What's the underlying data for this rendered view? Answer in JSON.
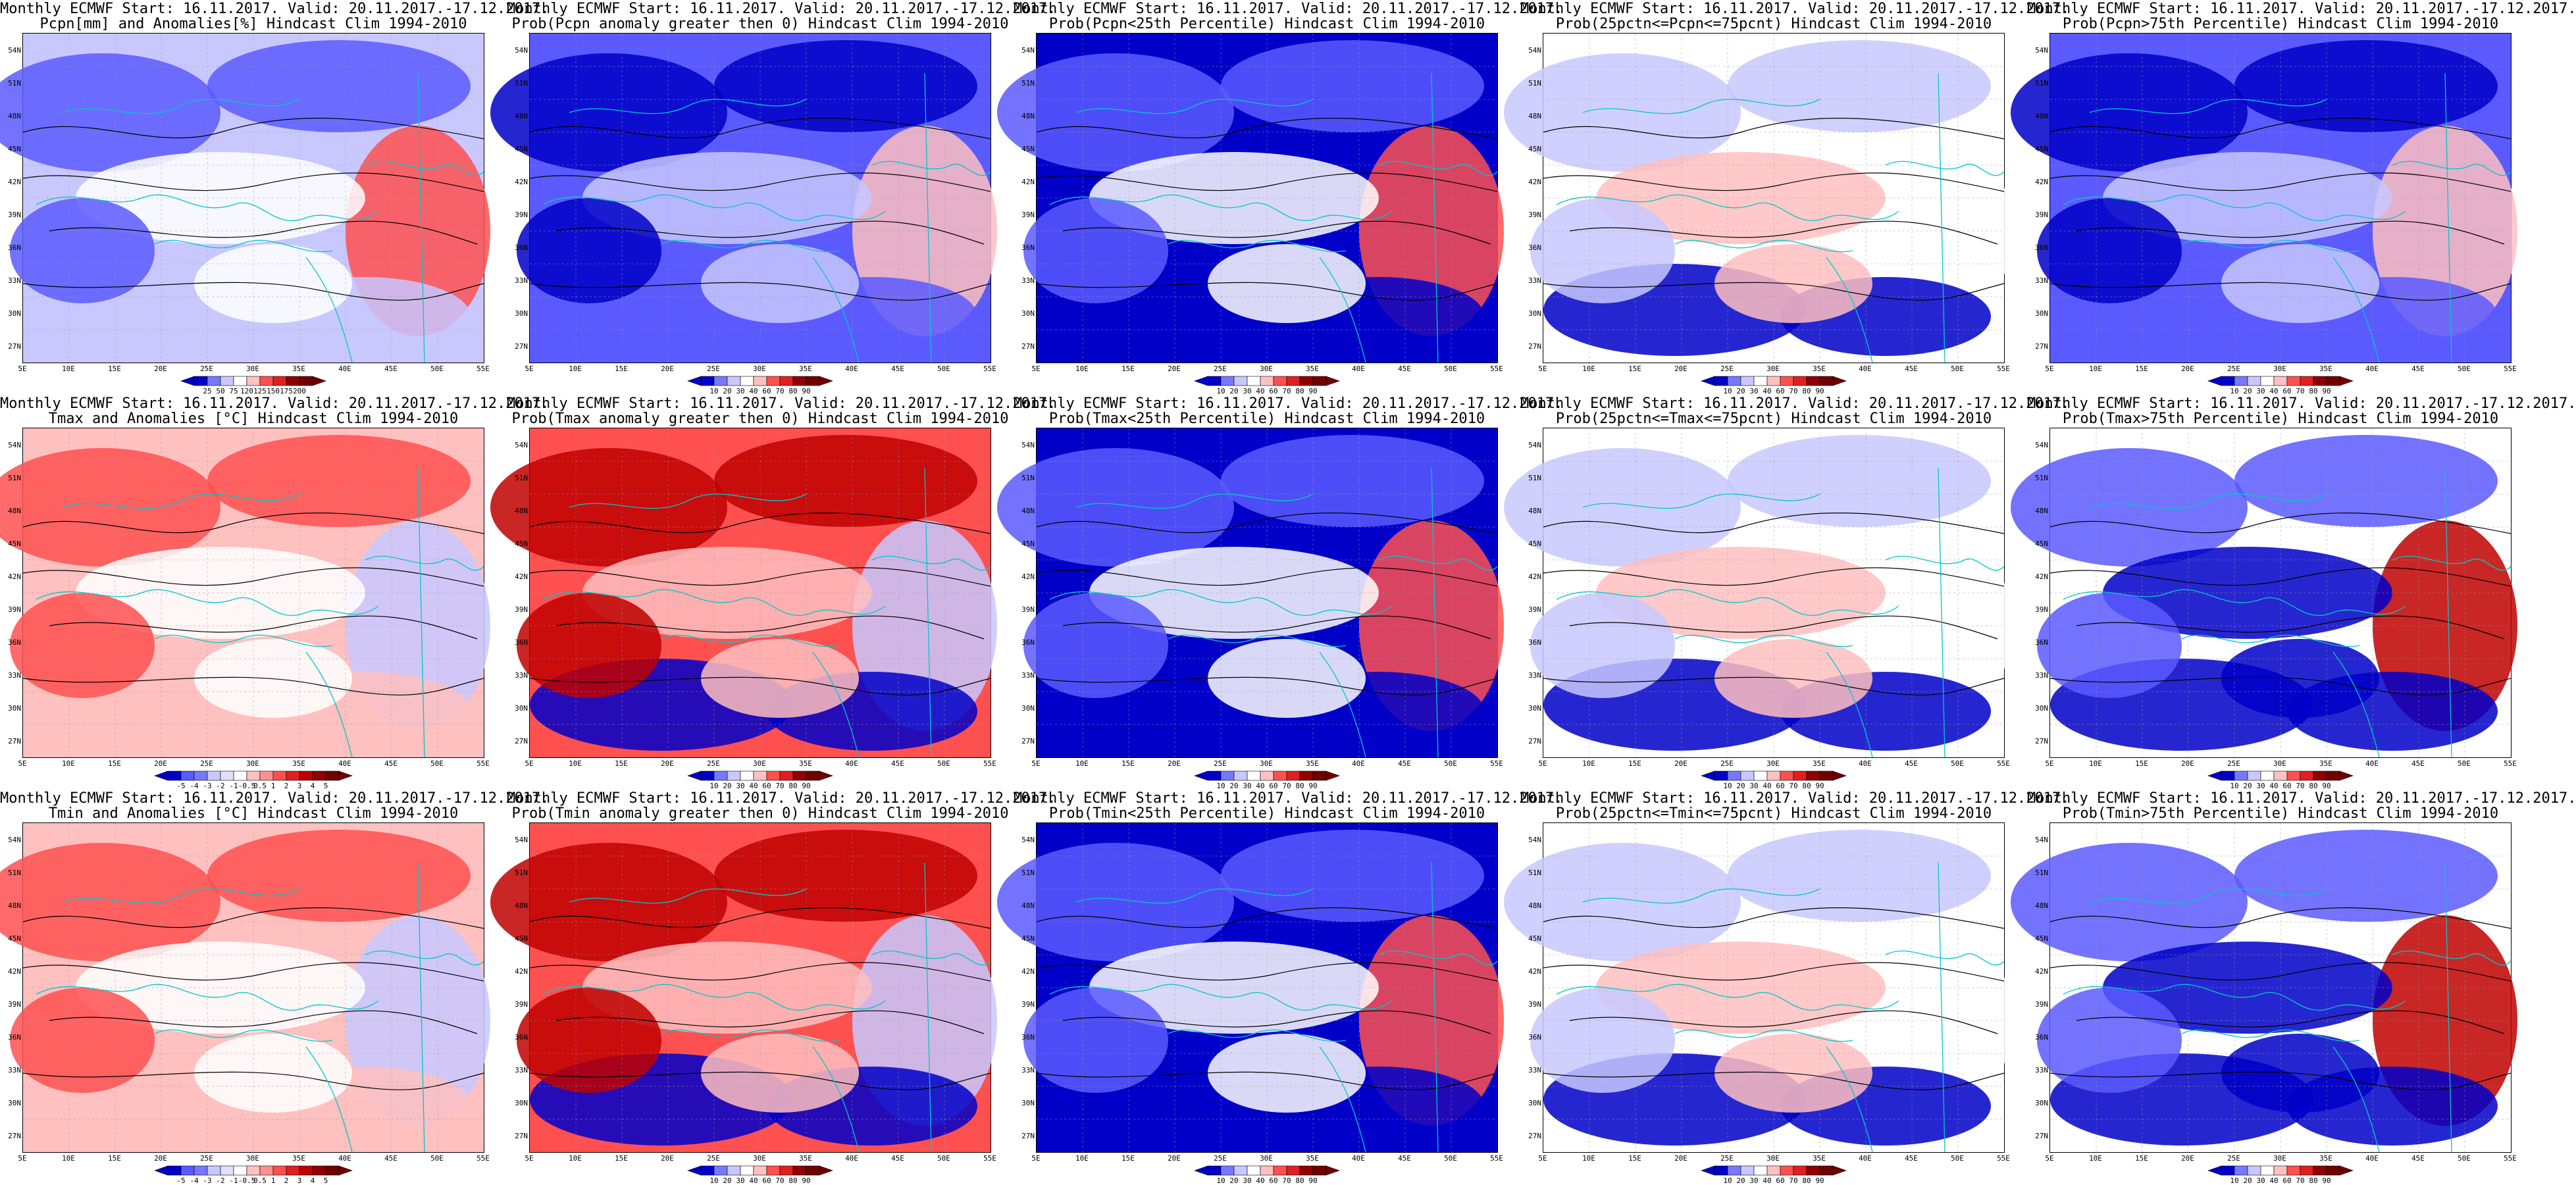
{
  "lat_labels": [
    "54N",
    "51N",
    "48N",
    "45N",
    "42N",
    "39N",
    "36N",
    "33N",
    "30N",
    "27N"
  ],
  "lon_labels": [
    "5E",
    "10E",
    "15E",
    "20E",
    "25E",
    "30E",
    "35E",
    "40E",
    "45E",
    "50E",
    "55E"
  ],
  "colors": {
    "coast": "#00c8c8",
    "contour": "#000000",
    "blue_dark": "#0000c8",
    "blue_mid": "#5a5aff",
    "blue_light": "#c8c8ff",
    "white": "#ffffff",
    "red_light": "#ffc0c0",
    "red_mid": "#ff5050",
    "red_dark": "#c00000"
  },
  "colorbars": {
    "precip_anom": [
      "25",
      "50",
      "75",
      "120",
      "125",
      "150",
      "175",
      "200"
    ],
    "temp_anom": [
      "-5",
      "-4",
      "-3",
      "-2",
      "-1",
      "-0.5",
      "0.5",
      "1",
      "2",
      "3",
      "4",
      "5"
    ],
    "prob": [
      "10",
      "20",
      "30",
      "40",
      "60",
      "70",
      "80",
      "90"
    ]
  },
  "panels": [
    {
      "title1": "Monthly ECMWF Start: 16.11.2017. Valid: 20.11.2017.-17.12.2017.",
      "title2": "Pcpn[mm] and Anomalies[%] Hindcast Clim 1994-2010",
      "colorbar": "precip_anom",
      "pattern": "blue"
    },
    {
      "title1": "Monthly ECMWF Start: 16.11.2017. Valid: 20.11.2017.-17.12.2017.",
      "title2": "Prob(Pcpn anomaly greater then 0) Hindcast Clim 1994-2010",
      "colorbar": "prob",
      "pattern": "bluedeep"
    },
    {
      "title1": "Monthly ECMWF Start: 16.11.2017. Valid: 20.11.2017.-17.12.2017.",
      "title2": "Prob(Pcpn<25th Percentile) Hindcast Clim 1994-2010",
      "colorbar": "prob",
      "pattern": "bluedark"
    },
    {
      "title1": "Monthly ECMWF Start: 16.11.2017. Valid: 20.11.2017.-17.12.2017.",
      "title2": "Prob(25pctn<=Pcpn<=75pcnt) Hindcast Clim 1994-2010",
      "colorbar": "prob",
      "pattern": "mixed"
    },
    {
      "title1": "Monthly ECMWF Start: 16.11.2017. Valid: 20.11.2017.-17.12.2017.",
      "title2": "Prob(Pcpn>75th Percentile) Hindcast Clim 1994-2010",
      "colorbar": "prob",
      "pattern": "bluedeep"
    },
    {
      "title1": "Monthly ECMWF Start: 16.11.2017. Valid: 20.11.2017.-17.12.2017.",
      "title2": "Tmax and Anomalies [°C] Hindcast Clim 1994-2010",
      "colorbar": "temp_anom",
      "pattern": "redlight"
    },
    {
      "title1": "Monthly ECMWF Start: 16.11.2017. Valid: 20.11.2017.-17.12.2017.",
      "title2": "Prob(Tmax anomaly greater then 0) Hindcast Clim 1994-2010",
      "colorbar": "prob",
      "pattern": "redstrong"
    },
    {
      "title1": "Monthly ECMWF Start: 16.11.2017. Valid: 20.11.2017.-17.12.2017.",
      "title2": "Prob(Tmax<25th Percentile) Hindcast Clim 1994-2010",
      "colorbar": "prob",
      "pattern": "bluedark"
    },
    {
      "title1": "Monthly ECMWF Start: 16.11.2017. Valid: 20.11.2017.-17.12.2017.",
      "title2": "Prob(25pctn<=Tmax<=75pcnt) Hindcast Clim 1994-2010",
      "colorbar": "prob",
      "pattern": "mixed"
    },
    {
      "title1": "Monthly ECMWF Start: 16.11.2017. Valid: 20.11.2017.-17.12.2017.",
      "title2": "Prob(Tmax>75th Percentile) Hindcast Clim 1994-2010",
      "colorbar": "prob",
      "pattern": "blueSouth"
    },
    {
      "title1": "Monthly ECMWF Start: 16.11.2017. Valid: 20.11.2017.-17.12.2017.",
      "title2": "Tmin and Anomalies [°C] Hindcast Clim 1994-2010",
      "colorbar": "temp_anom",
      "pattern": "redlight"
    },
    {
      "title1": "Monthly ECMWF Start: 16.11.2017. Valid: 20.11.2017.-17.12.2017.",
      "title2": "Prob(Tmin anomaly greater then 0) Hindcast Clim 1994-2010",
      "colorbar": "prob",
      "pattern": "redstrong"
    },
    {
      "title1": "Monthly ECMWF Start: 16.11.2017. Valid: 20.11.2017.-17.12.2017.",
      "title2": "Prob(Tmin<25th Percentile) Hindcast Clim 1994-2010",
      "colorbar": "prob",
      "pattern": "bluedark"
    },
    {
      "title1": "Monthly ECMWF Start: 16.11.2017. Valid: 20.11.2017.-17.12.2017.",
      "title2": "Prob(25pctn<=Tmin<=75pcnt) Hindcast Clim 1994-2010",
      "colorbar": "prob",
      "pattern": "mixed"
    },
    {
      "title1": "Monthly ECMWF Start: 16.11.2017. Valid: 20.11.2017.-17.12.2017.",
      "title2": "Prob(Tmin>75th Percentile) Hindcast Clim 1994-2010",
      "colorbar": "prob",
      "pattern": "blueSouth"
    }
  ]
}
